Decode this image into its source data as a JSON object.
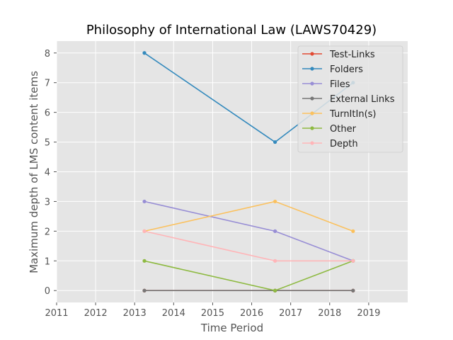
{
  "chart_data": {
    "type": "line",
    "title": "Philosophy of International Law (LAWS70429)",
    "xlabel": "Time Period",
    "ylabel": "Maximum depth of LMS content items",
    "xlim": [
      2011,
      2020
    ],
    "ylim": [
      -0.4,
      8.4
    ],
    "xticks": [
      "2011",
      "2012",
      "2013",
      "2014",
      "2015",
      "2016",
      "2017",
      "2018",
      "2019"
    ],
    "yticks": [
      "0",
      "1",
      "2",
      "3",
      "4",
      "5",
      "6",
      "7",
      "8"
    ],
    "x": [
      2013.25,
      2016.6,
      2018.6
    ],
    "grid": true,
    "legend_position": "top-right",
    "series": [
      {
        "name": "Test-Links",
        "color": "#E24A33",
        "values": [
          0,
          0,
          0
        ]
      },
      {
        "name": "Folders",
        "color": "#348ABD",
        "values": [
          8,
          5,
          7
        ]
      },
      {
        "name": "Files",
        "color": "#988ED5",
        "values": [
          3,
          2,
          1
        ]
      },
      {
        "name": "External Links",
        "color": "#777777",
        "values": [
          0,
          0,
          0
        ]
      },
      {
        "name": "TurnItIn(s)",
        "color": "#FBC15E",
        "values": [
          2,
          3,
          2
        ]
      },
      {
        "name": "Other",
        "color": "#8EBA42",
        "values": [
          1,
          0,
          1
        ]
      },
      {
        "name": "Depth",
        "color": "#FFB5B8",
        "values": [
          2,
          1,
          1
        ]
      }
    ]
  }
}
